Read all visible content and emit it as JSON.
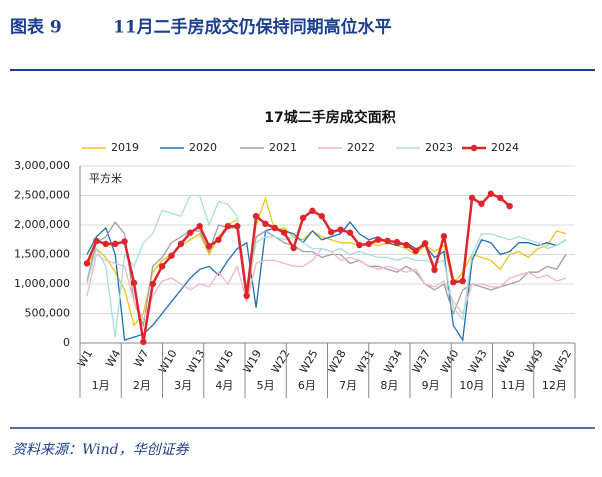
{
  "header": {
    "label": "图表 9",
    "title": "11月二手房成交仍保持同期高位水平"
  },
  "source": "资料来源：Wind，华创证券",
  "chart_data": {
    "type": "line",
    "title": "17城二手房成交面积",
    "y_unit": "平方米",
    "categories": [
      "W1",
      null,
      null,
      "W4",
      null,
      null,
      "W7",
      null,
      null,
      "W10",
      null,
      null,
      "W13",
      null,
      null,
      "W16",
      null,
      null,
      "W19",
      null,
      null,
      "W22",
      null,
      null,
      "W25",
      null,
      null,
      "W28",
      null,
      null,
      "W31",
      null,
      null,
      "W34",
      null,
      null,
      "W37",
      null,
      null,
      "W40",
      null,
      null,
      "W43",
      null,
      null,
      "W46",
      null,
      null,
      "W49",
      null,
      null,
      "W52"
    ],
    "months": [
      "1月",
      "2月",
      "3月",
      "4月",
      "5月",
      "6月",
      "7月",
      "8月",
      "9月",
      "10月",
      "11月",
      "12月"
    ],
    "ylim": [
      0,
      3000000
    ],
    "yticks": [
      0,
      {
        "value": 500000,
        "label": "500,000"
      },
      {
        "value": 1000000,
        "label": "1,000,000"
      },
      {
        "value": 1500000,
        "label": "1,500,000"
      },
      {
        "value": 2000000,
        "label": "2,000,000"
      },
      {
        "value": 2500000,
        "label": "2,500,000"
      },
      {
        "value": 3000000,
        "label": "3,000,000"
      }
    ],
    "grid": true,
    "series": [
      {
        "name": "2019",
        "color": "#f2c31a",
        "values": [
          1300000,
          1600000,
          1450000,
          1200000,
          900000,
          300000,
          500000,
          1200000,
          1400000,
          1500000,
          1650000,
          1750000,
          1850000,
          1500000,
          1800000,
          2000000,
          2100000,
          900000,
          2000000,
          2450000,
          1900000,
          1950000,
          1800000,
          1750000,
          1900000,
          1800000,
          1750000,
          1700000,
          1700000,
          1650000,
          1700000,
          1650000,
          1700000,
          1650000,
          1600000,
          1500000,
          1650000,
          1550000,
          1650000,
          1000000,
          1200000,
          1500000,
          1450000,
          1400000,
          1250000,
          1500000,
          1550000,
          1450000,
          1600000,
          1650000,
          1900000,
          1850000
        ]
      },
      {
        "name": "2020",
        "color": "#1f6fb5",
        "values": [
          1500000,
          1800000,
          1950000,
          1500000,
          50000,
          100000,
          150000,
          300000,
          500000,
          700000,
          900000,
          1100000,
          1250000,
          1300000,
          1150000,
          1400000,
          1600000,
          1700000,
          600000,
          1900000,
          1950000,
          1900000,
          1850000,
          1700000,
          1900000,
          1750000,
          1800000,
          1850000,
          2050000,
          1850000,
          1750000,
          1800000,
          1700000,
          1650000,
          1700000,
          1600000,
          1650000,
          1450000,
          1550000,
          300000,
          50000,
          1400000,
          1750000,
          1700000,
          1500000,
          1550000,
          1700000,
          1700000,
          1650000,
          1700000,
          1650000,
          1750000
        ]
      },
      {
        "name": "2021",
        "color": "#a0a0a0",
        "values": [
          1050000,
          1700000,
          1800000,
          2050000,
          1850000,
          700000,
          300000,
          1300000,
          1450000,
          1700000,
          1800000,
          1900000,
          1900000,
          1550000,
          2000000,
          1950000,
          1950000,
          700000,
          1800000,
          1900000,
          1800000,
          1700000,
          1650000,
          1550000,
          1550000,
          1450000,
          1500000,
          1500000,
          1350000,
          1400000,
          1300000,
          1300000,
          1250000,
          1200000,
          1300000,
          1200000,
          1000000,
          900000,
          1000000,
          500000,
          900000,
          1000000,
          950000,
          900000,
          950000,
          1000000,
          1050000,
          1200000,
          1200000,
          1300000,
          1250000,
          1500000
        ]
      },
      {
        "name": "2022",
        "color": "#f4b6c2",
        "values": [
          800000,
          1500000,
          1400000,
          1350000,
          1300000,
          700000,
          400000,
          800000,
          1050000,
          1100000,
          1000000,
          900000,
          1000000,
          950000,
          1200000,
          1000000,
          1300000,
          700000,
          1350000,
          1400000,
          1400000,
          1350000,
          1300000,
          1300000,
          1400000,
          1600000,
          1550000,
          1400000,
          1450000,
          1400000,
          1300000,
          1250000,
          1300000,
          1250000,
          1200000,
          1250000,
          1000000,
          950000,
          1050000,
          700000,
          500000,
          1000000,
          1000000,
          950000,
          950000,
          1100000,
          1150000,
          1200000,
          1100000,
          1150000,
          1050000,
          1100000
        ]
      },
      {
        "name": "2023",
        "color": "#a8dede",
        "values": [
          1000000,
          1600000,
          1300000,
          100000,
          1500000,
          1300000,
          1700000,
          1850000,
          2250000,
          2200000,
          2150000,
          2500000,
          2500000,
          2000000,
          2400000,
          2350000,
          2150000,
          900000,
          1700000,
          1800000,
          1800000,
          1750000,
          1800000,
          1700000,
          1600000,
          1600000,
          1550000,
          1600000,
          1500000,
          1550000,
          1500000,
          1450000,
          1450000,
          1400000,
          1450000,
          1400000,
          1400000,
          1350000,
          1400000,
          600000,
          400000,
          1500000,
          1850000,
          1850000,
          1800000,
          1750000,
          1800000,
          1750000,
          1700000,
          1600000,
          1650000,
          1750000
        ]
      },
      {
        "name": "2024",
        "color": "#e0242b",
        "markers": true,
        "values": [
          1350000,
          1730000,
          1680000,
          1680000,
          1720000,
          1020000,
          20000,
          1000000,
          1300000,
          1480000,
          1680000,
          1870000,
          1980000,
          1640000,
          1750000,
          1980000,
          1980000,
          800000,
          2150000,
          2020000,
          1950000,
          1870000,
          1610000,
          2120000,
          2240000,
          2150000,
          1880000,
          1920000,
          1870000,
          1660000,
          1680000,
          1750000,
          1730000,
          1710000,
          1660000,
          1560000,
          1690000,
          1240000,
          1810000,
          1030000,
          1050000,
          2460000,
          2360000,
          2530000,
          2460000,
          2320000,
          null,
          null,
          null,
          null,
          null,
          null
        ]
      }
    ]
  }
}
